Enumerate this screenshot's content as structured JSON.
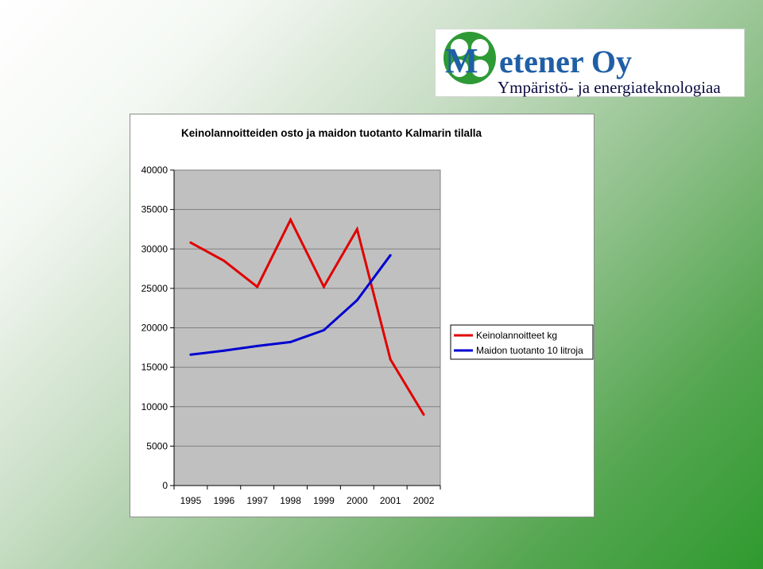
{
  "logo": {
    "initial": "M",
    "name": "etener Oy",
    "tagline": "Ympäristö- ja energiateknologiaa"
  },
  "chart_data": {
    "type": "line",
    "title": "Keinolannoitteiden osto ja maidon tuotanto Kalmarin tilalla",
    "xlabel": "",
    "ylabel": "",
    "categories": [
      "1995",
      "1996",
      "1997",
      "1998",
      "1999",
      "2000",
      "2001",
      "2002"
    ],
    "ylim": [
      0,
      40000
    ],
    "yticks": [
      "0",
      "5000",
      "10000",
      "15000",
      "20000",
      "25000",
      "30000",
      "35000",
      "40000"
    ],
    "grid": true,
    "legend_position": "right",
    "series": [
      {
        "name": "Keinolannoitteet kg",
        "color": "#e00000",
        "values": [
          30800,
          28500,
          25200,
          33700,
          25200,
          32500,
          16000,
          9000
        ]
      },
      {
        "name": "Maidon tuotanto 10 litroja",
        "color": "#0000d0",
        "values": [
          16600,
          17100,
          17700,
          18200,
          19700,
          23500,
          29200,
          null
        ]
      }
    ]
  }
}
